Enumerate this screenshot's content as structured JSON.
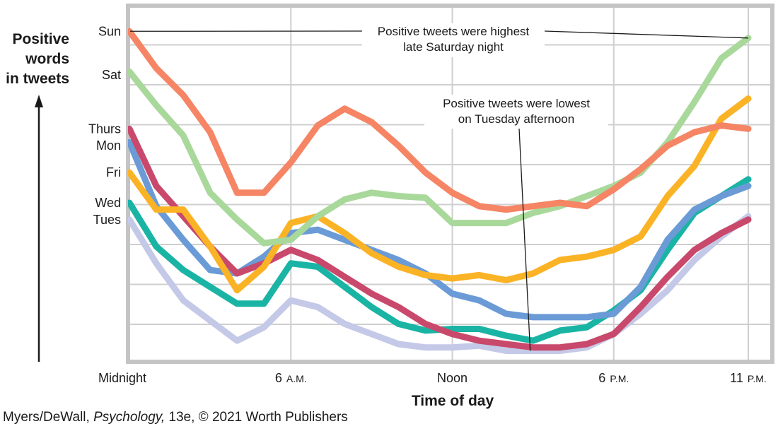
{
  "chart_data": {
    "type": "line",
    "title": "",
    "ylabel_lines": [
      "Positive",
      "words",
      "in tweets"
    ],
    "xlabel": "Time of day",
    "x_ticks": [
      {
        "label": "Midnight",
        "unit": "",
        "hour": 0
      },
      {
        "label": "6",
        "unit": "A.M.",
        "hour": 6
      },
      {
        "label": "Noon",
        "unit": "",
        "hour": 12
      },
      {
        "label": "6",
        "unit": "P.M.",
        "hour": 18
      },
      {
        "label": "11",
        "unit": "P.M.",
        "hour": 23
      }
    ],
    "xlim": [
      0,
      23
    ],
    "ylim": [
      0,
      100
    ],
    "grid": true,
    "y_day_labels": [
      {
        "label": "Sun",
        "value": 97
      },
      {
        "label": "Sat",
        "value": 84
      },
      {
        "label": "Thurs",
        "value": 68
      },
      {
        "label": "Mon",
        "value": 63
      },
      {
        "label": "Fri",
        "value": 55
      },
      {
        "label": "Wed",
        "value": 46
      },
      {
        "label": "Tues",
        "value": 41
      }
    ],
    "series": [
      {
        "name": "Sun",
        "color": "#f58565",
        "values": [
          97,
          86,
          78,
          67,
          49,
          49,
          58,
          69,
          74,
          70,
          63,
          55,
          49,
          45,
          44,
          45,
          46,
          45,
          50,
          56,
          63,
          67,
          69,
          68
        ]
      },
      {
        "name": "Sat",
        "color": "#a9d89b",
        "values": [
          85,
          75,
          66,
          49,
          41,
          34,
          35,
          42,
          47,
          49,
          48,
          47.5,
          40,
          40,
          40,
          43,
          45,
          48,
          51,
          55,
          64,
          76,
          89,
          95
        ]
      },
      {
        "name": "Thurs",
        "color": "#c8496b",
        "values": [
          68,
          51,
          42,
          33,
          25,
          28,
          32,
          29,
          24,
          19,
          15,
          10,
          7,
          5,
          4,
          3,
          3,
          4,
          7,
          15,
          24,
          32,
          37,
          41
        ]
      },
      {
        "name": "Mon",
        "color": "#6a9bd6",
        "values": [
          64,
          45,
          35,
          26,
          25,
          30,
          37,
          38,
          35,
          32,
          29,
          25,
          19,
          17,
          13,
          12,
          12,
          12,
          13,
          21,
          35,
          44,
          48,
          51
        ]
      },
      {
        "name": "Fri",
        "color": "#fbb326",
        "values": [
          55,
          44,
          44,
          33,
          20,
          27,
          40,
          42,
          37,
          31,
          27,
          24.5,
          23.5,
          24.5,
          23,
          25,
          29,
          30,
          32,
          36,
          48,
          57,
          71,
          77
        ]
      },
      {
        "name": "Wed",
        "color": "#1ab4a5",
        "values": [
          46,
          33,
          26,
          21,
          16,
          16,
          28,
          27,
          21,
          15,
          10,
          8,
          8.5,
          8.5,
          6.5,
          5,
          8,
          9,
          14,
          20,
          32,
          43,
          48,
          53
        ]
      },
      {
        "name": "Tues",
        "color": "#c5c9e8",
        "values": [
          41,
          28,
          17,
          11,
          5,
          9,
          17,
          15,
          10,
          7,
          4,
          3,
          3,
          3.5,
          2,
          2,
          2,
          3,
          7,
          13,
          20,
          29,
          36,
          42
        ]
      }
    ],
    "annotations": [
      {
        "lines": [
          "Positive tweets were highest",
          "late Saturday night"
        ],
        "series": "Sat",
        "hour": 23,
        "value": 95,
        "legend_label": "Sun"
      },
      {
        "lines": [
          "Positive tweets were lowest",
          "on Tuesday afternoon"
        ],
        "series": "Tues",
        "hour": 15,
        "value": 2
      }
    ]
  },
  "credit": {
    "author": "Myers/DeWall, ",
    "book": "Psychology,",
    "rest": " 13e, © 2021 Worth Publishers"
  }
}
